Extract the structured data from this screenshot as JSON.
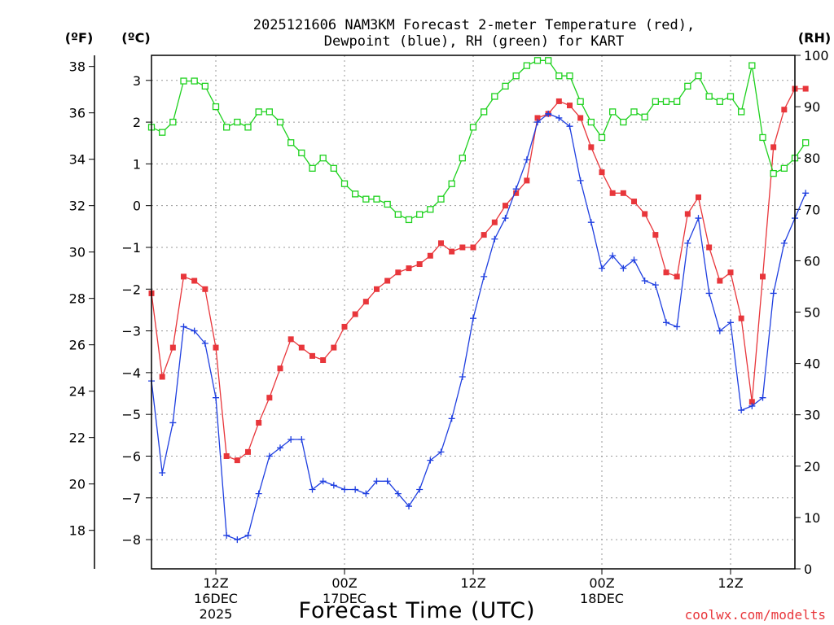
{
  "chart_data": {
    "type": "line",
    "title_line1": "2025121606 NAM3KM Forecast 2-meter Temperature (red),",
    "title_line2": "Dewpoint (blue), RH (green) for KART",
    "xlabel": "Forecast Time (UTC)",
    "watermark": "coolwx.com/modelts",
    "unit_labels": {
      "fahrenheit": "(ºF)",
      "celsius": "(ºC)",
      "rh": "(RH)"
    },
    "x_ticks": [
      {
        "hour": 6,
        "l1": "12Z",
        "l2": "16DEC",
        "l3": "2025"
      },
      {
        "hour": 18,
        "l1": "00Z",
        "l2": "17DEC",
        "l3": ""
      },
      {
        "hour": 30,
        "l1": "12Z",
        "l2": "",
        "l3": ""
      },
      {
        "hour": 42,
        "l1": "00Z",
        "l2": "18DEC",
        "l3": ""
      },
      {
        "hour": 54,
        "l1": "12Z",
        "l2": "",
        "l3": ""
      }
    ],
    "xlim": [
      0,
      60
    ],
    "celsius_lim": [
      -8.7,
      3.6
    ],
    "celsius_ticks": [
      "3",
      "2",
      "1",
      "0",
      "−1",
      "−2",
      "−3",
      "−4",
      "−5",
      "−6",
      "−7",
      "−8"
    ],
    "fahrenheit_ticks": [
      "38",
      "36",
      "34",
      "32",
      "30",
      "28",
      "26",
      "24",
      "22",
      "20",
      "18"
    ],
    "rh_lim": [
      0,
      100
    ],
    "rh_ticks": [
      "100",
      "90",
      "80",
      "70",
      "60",
      "50",
      "40",
      "30",
      "20",
      "10",
      "0"
    ],
    "series": [
      {
        "name": "Temperature",
        "unit": "C",
        "color": "#e8363b",
        "marker": "filled-square",
        "values": [
          -2.1,
          -4.1,
          -3.4,
          -1.7,
          -1.8,
          -2.0,
          -3.4,
          -6.0,
          -6.1,
          -5.9,
          -5.2,
          -4.6,
          -3.9,
          -3.2,
          -3.4,
          -3.6,
          -3.7,
          -3.4,
          -2.9,
          -2.6,
          -2.3,
          -2.0,
          -1.8,
          -1.6,
          -1.5,
          -1.4,
          -1.2,
          -0.9,
          -1.1,
          -1.0,
          -1.0,
          -0.7,
          -0.4,
          0.0,
          0.3,
          0.6,
          2.1,
          2.2,
          2.5,
          2.4,
          2.1,
          1.4,
          0.8,
          0.3,
          0.3,
          0.1,
          -0.2,
          -0.7,
          -1.6,
          -1.7,
          -0.2,
          0.2,
          -1.0,
          -1.8,
          -1.6,
          -2.7,
          -4.7,
          -1.7,
          1.4,
          2.3,
          2.8,
          2.8
        ]
      },
      {
        "name": "Dewpoint",
        "unit": "C",
        "color": "#1f3fe0",
        "marker": "plus",
        "values": [
          -4.2,
          -6.4,
          -5.2,
          -2.9,
          -3.0,
          -3.3,
          -4.6,
          -7.9,
          -8.0,
          -7.9,
          -6.9,
          -6.0,
          -5.8,
          -5.6,
          -5.6,
          -6.8,
          -6.6,
          -6.7,
          -6.8,
          -6.8,
          -6.9,
          -6.6,
          -6.6,
          -6.9,
          -7.2,
          -6.8,
          -6.1,
          -5.9,
          -5.1,
          -4.1,
          -2.7,
          -1.7,
          -0.8,
          -0.3,
          0.4,
          1.1,
          2.0,
          2.2,
          2.1,
          1.9,
          0.6,
          -0.4,
          -1.5,
          -1.2,
          -1.5,
          -1.3,
          -1.8,
          -1.9,
          -2.8,
          -2.9,
          -0.9,
          -0.3,
          -2.1,
          -3.0,
          -2.8,
          -4.9,
          -4.8,
          -4.6,
          -2.1,
          -0.9,
          -0.3,
          0.3
        ]
      },
      {
        "name": "RH",
        "unit": "%",
        "color": "#1ed11e",
        "marker": "open-square",
        "values": [
          86,
          85,
          87,
          95,
          95,
          94,
          90,
          86,
          87,
          86,
          89,
          89,
          87,
          83,
          81,
          78,
          80,
          78,
          75,
          73,
          72,
          72,
          71,
          69,
          68,
          69,
          70,
          72,
          75,
          80,
          86,
          89,
          92,
          94,
          96,
          98,
          99,
          99,
          96,
          96,
          91,
          87,
          84,
          89,
          87,
          89,
          88,
          91,
          91,
          91,
          94,
          96,
          92,
          91,
          92,
          89,
          98,
          84,
          77,
          78,
          80,
          83
        ]
      }
    ]
  }
}
